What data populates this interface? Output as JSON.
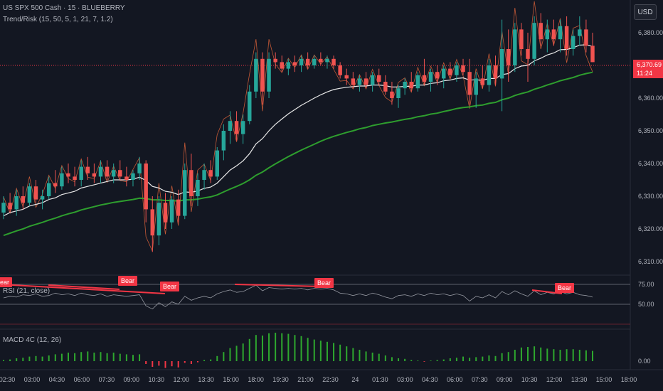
{
  "header": {
    "symbol_line": "US SPX 500 Cash · 15 · BLUEBERRY",
    "indicator_line": "Trend/Risk (15, 50, 5, 1, 21, 7, 1.2)"
  },
  "currency_button": "USD",
  "last_price": {
    "value": "6,370.69",
    "countdown": "11:24"
  },
  "rsi_panel": {
    "label": "RSI (21, close)",
    "bear_label": "Bear",
    "levels": [
      "75.00",
      "50.00"
    ]
  },
  "macd_panel": {
    "label": "MACD 4C (12, 26)",
    "level": "0.00"
  },
  "colors": {
    "up": "#26a69a",
    "down": "#f05350",
    "ema_fast": "#e8e8e8",
    "ema_slow": "#2e9e2e",
    "rsi_line": "#9598a1",
    "bear": "#f23645",
    "macd_pos": "#2ea82e",
    "macd_neg": "#f23645"
  },
  "chart_data": {
    "type": "candlestick",
    "y_ticks": [
      "6,380.00",
      "6,370.00",
      "6,360.00",
      "6,350.00",
      "6,340.00",
      "6,330.00",
      "6,320.00",
      "6,310.00"
    ],
    "ylim": [
      6306,
      6390
    ],
    "x_ticks": [
      "02:30",
      "03:00",
      "04:30",
      "06:00",
      "07:30",
      "09:00",
      "10:30",
      "12:00",
      "13:30",
      "15:00",
      "18:00",
      "19:30",
      "21:00",
      "22:30",
      "24",
      "01:30",
      "03:00",
      "04:30",
      "06:00",
      "07:30",
      "09:00",
      "10:30",
      "12:00",
      "13:30",
      "15:00",
      "18:00"
    ],
    "candles": [
      {
        "o": 6325,
        "h": 6330,
        "l": 6323,
        "c": 6328
      },
      {
        "o": 6328,
        "h": 6331,
        "l": 6325,
        "c": 6326
      },
      {
        "o": 6326,
        "h": 6332,
        "l": 6324,
        "c": 6330
      },
      {
        "o": 6330,
        "h": 6333,
        "l": 6326,
        "c": 6328
      },
      {
        "o": 6328,
        "h": 6334,
        "l": 6327,
        "c": 6333
      },
      {
        "o": 6333,
        "h": 6335,
        "l": 6328,
        "c": 6329
      },
      {
        "o": 6329,
        "h": 6332,
        "l": 6326,
        "c": 6330
      },
      {
        "o": 6330,
        "h": 6336,
        "l": 6329,
        "c": 6334
      },
      {
        "o": 6334,
        "h": 6338,
        "l": 6331,
        "c": 6333
      },
      {
        "o": 6333,
        "h": 6339,
        "l": 6332,
        "c": 6337
      },
      {
        "o": 6337,
        "h": 6340,
        "l": 6334,
        "c": 6336
      },
      {
        "o": 6336,
        "h": 6339,
        "l": 6333,
        "c": 6335
      },
      {
        "o": 6335,
        "h": 6341,
        "l": 6333,
        "c": 6339
      },
      {
        "o": 6339,
        "h": 6342,
        "l": 6335,
        "c": 6337
      },
      {
        "o": 6337,
        "h": 6340,
        "l": 6334,
        "c": 6336
      },
      {
        "o": 6336,
        "h": 6341,
        "l": 6334,
        "c": 6339
      },
      {
        "o": 6339,
        "h": 6341,
        "l": 6335,
        "c": 6336
      },
      {
        "o": 6336,
        "h": 6340,
        "l": 6334,
        "c": 6338
      },
      {
        "o": 6338,
        "h": 6341,
        "l": 6335,
        "c": 6336
      },
      {
        "o": 6336,
        "h": 6339,
        "l": 6333,
        "c": 6335
      },
      {
        "o": 6335,
        "h": 6338,
        "l": 6333,
        "c": 6337
      },
      {
        "o": 6337,
        "h": 6342,
        "l": 6335,
        "c": 6340
      },
      {
        "o": 6340,
        "h": 6341,
        "l": 6322,
        "c": 6326
      },
      {
        "o": 6326,
        "h": 6330,
        "l": 6313,
        "c": 6318
      },
      {
        "o": 6318,
        "h": 6330,
        "l": 6315,
        "c": 6328
      },
      {
        "o": 6328,
        "h": 6331,
        "l": 6320,
        "c": 6322
      },
      {
        "o": 6322,
        "h": 6330,
        "l": 6320,
        "c": 6329
      },
      {
        "o": 6329,
        "h": 6332,
        "l": 6322,
        "c": 6324
      },
      {
        "o": 6324,
        "h": 6340,
        "l": 6323,
        "c": 6338
      },
      {
        "o": 6338,
        "h": 6343,
        "l": 6327,
        "c": 6330
      },
      {
        "o": 6330,
        "h": 6337,
        "l": 6327,
        "c": 6335
      },
      {
        "o": 6335,
        "h": 6340,
        "l": 6332,
        "c": 6338
      },
      {
        "o": 6338,
        "h": 6341,
        "l": 6334,
        "c": 6336
      },
      {
        "o": 6336,
        "h": 6345,
        "l": 6335,
        "c": 6344
      },
      {
        "o": 6344,
        "h": 6352,
        "l": 6341,
        "c": 6350
      },
      {
        "o": 6350,
        "h": 6356,
        "l": 6346,
        "c": 6353
      },
      {
        "o": 6353,
        "h": 6356,
        "l": 6347,
        "c": 6349
      },
      {
        "o": 6349,
        "h": 6355,
        "l": 6346,
        "c": 6353
      },
      {
        "o": 6353,
        "h": 6364,
        "l": 6352,
        "c": 6362
      },
      {
        "o": 6362,
        "h": 6374,
        "l": 6360,
        "c": 6372
      },
      {
        "o": 6372,
        "h": 6374,
        "l": 6358,
        "c": 6362
      },
      {
        "o": 6362,
        "h": 6374,
        "l": 6360,
        "c": 6372
      },
      {
        "o": 6372,
        "h": 6374,
        "l": 6369,
        "c": 6371
      },
      {
        "o": 6371,
        "h": 6373,
        "l": 6368,
        "c": 6369
      },
      {
        "o": 6369,
        "h": 6372,
        "l": 6367,
        "c": 6371
      },
      {
        "o": 6371,
        "h": 6373,
        "l": 6368,
        "c": 6370
      },
      {
        "o": 6370,
        "h": 6373,
        "l": 6368,
        "c": 6372
      },
      {
        "o": 6372,
        "h": 6374,
        "l": 6369,
        "c": 6370
      },
      {
        "o": 6370,
        "h": 6373,
        "l": 6369,
        "c": 6372
      },
      {
        "o": 6372,
        "h": 6374,
        "l": 6370,
        "c": 6371
      },
      {
        "o": 6371,
        "h": 6373,
        "l": 6369,
        "c": 6372
      },
      {
        "o": 6372,
        "h": 6373,
        "l": 6369,
        "c": 6370
      },
      {
        "o": 6370,
        "h": 6371,
        "l": 6366,
        "c": 6367
      },
      {
        "o": 6367,
        "h": 6369,
        "l": 6364,
        "c": 6366
      },
      {
        "o": 6366,
        "h": 6368,
        "l": 6363,
        "c": 6364
      },
      {
        "o": 6364,
        "h": 6367,
        "l": 6362,
        "c": 6366
      },
      {
        "o": 6366,
        "h": 6368,
        "l": 6363,
        "c": 6364
      },
      {
        "o": 6364,
        "h": 6368,
        "l": 6362,
        "c": 6367
      },
      {
        "o": 6367,
        "h": 6369,
        "l": 6364,
        "c": 6365
      },
      {
        "o": 6365,
        "h": 6367,
        "l": 6361,
        "c": 6362
      },
      {
        "o": 6362,
        "h": 6365,
        "l": 6358,
        "c": 6360
      },
      {
        "o": 6360,
        "h": 6364,
        "l": 6357,
        "c": 6363
      },
      {
        "o": 6363,
        "h": 6366,
        "l": 6361,
        "c": 6365
      },
      {
        "o": 6365,
        "h": 6368,
        "l": 6362,
        "c": 6363
      },
      {
        "o": 6363,
        "h": 6368,
        "l": 6362,
        "c": 6367
      },
      {
        "o": 6367,
        "h": 6372,
        "l": 6364,
        "c": 6365
      },
      {
        "o": 6365,
        "h": 6369,
        "l": 6362,
        "c": 6368
      },
      {
        "o": 6368,
        "h": 6370,
        "l": 6364,
        "c": 6366
      },
      {
        "o": 6366,
        "h": 6370,
        "l": 6363,
        "c": 6369
      },
      {
        "o": 6369,
        "h": 6371,
        "l": 6366,
        "c": 6367
      },
      {
        "o": 6367,
        "h": 6371,
        "l": 6365,
        "c": 6370
      },
      {
        "o": 6370,
        "h": 6372,
        "l": 6367,
        "c": 6368
      },
      {
        "o": 6368,
        "h": 6372,
        "l": 6358,
        "c": 6361
      },
      {
        "o": 6361,
        "h": 6368,
        "l": 6357,
        "c": 6366
      },
      {
        "o": 6366,
        "h": 6370,
        "l": 6363,
        "c": 6364
      },
      {
        "o": 6364,
        "h": 6372,
        "l": 6362,
        "c": 6370
      },
      {
        "o": 6370,
        "h": 6373,
        "l": 6364,
        "c": 6366
      },
      {
        "o": 6366,
        "h": 6384,
        "l": 6356,
        "c": 6375
      },
      {
        "o": 6375,
        "h": 6381,
        "l": 6365,
        "c": 6370
      },
      {
        "o": 6370,
        "h": 6383,
        "l": 6368,
        "c": 6381
      },
      {
        "o": 6381,
        "h": 6383,
        "l": 6373,
        "c": 6375
      },
      {
        "o": 6375,
        "h": 6380,
        "l": 6365,
        "c": 6372
      },
      {
        "o": 6372,
        "h": 6385,
        "l": 6370,
        "c": 6383
      },
      {
        "o": 6383,
        "h": 6386,
        "l": 6376,
        "c": 6378
      },
      {
        "o": 6378,
        "h": 6384,
        "l": 6374,
        "c": 6381
      },
      {
        "o": 6381,
        "h": 6384,
        "l": 6376,
        "c": 6378
      },
      {
        "o": 6378,
        "h": 6384,
        "l": 6374,
        "c": 6382
      },
      {
        "o": 6382,
        "h": 6385,
        "l": 6373,
        "c": 6375
      },
      {
        "o": 6375,
        "h": 6381,
        "l": 6373,
        "c": 6379
      },
      {
        "o": 6379,
        "h": 6385,
        "l": 6376,
        "c": 6381
      },
      {
        "o": 6381,
        "h": 6384,
        "l": 6374,
        "c": 6376
      },
      {
        "o": 6376,
        "h": 6380,
        "l": 6371,
        "c": 6371
      }
    ],
    "ema_fast": [
      6324,
      6325,
      6325.5,
      6326,
      6327,
      6327.5,
      6328,
      6329,
      6329.5,
      6330.5,
      6331,
      6331.5,
      6332.5,
      6333,
      6333.5,
      6334,
      6334.5,
      6335,
      6335,
      6335,
      6335.2,
      6335.8,
      6334.8,
      6333,
      6332.5,
      6331.5,
      6331.2,
      6330.5,
      6331.3,
      6331.2,
      6331.6,
      6332.4,
      6332.8,
      6334,
      6336,
      6338,
      6339.3,
      6340.8,
      6343,
      6346,
      6347.6,
      6350,
      6352,
      6353.6,
      6355.2,
      6356.5,
      6357.8,
      6358.9,
      6360,
      6361,
      6361.9,
      6362.6,
      6363,
      6363.3,
      6363.5,
      6363.7,
      6363.7,
      6364,
      6364,
      6363.8,
      6363.4,
      6363.4,
      6363.6,
      6363.6,
      6364,
      6364,
      6364.5,
      6364.7,
      6365.3,
      6365.5,
      6366,
      6366.2,
      6365.5,
      6365.6,
      6365.4,
      6366,
      6366,
      6367.2,
      6367.5,
      6369,
      6369.8,
      6370,
      6371.4,
      6372.2,
      6373.2,
      6373.8,
      6374.8,
      6374.9,
      6375.4,
      6376.2,
      6376.3,
      6375.8
    ],
    "ema_slow": [
      6318,
      6318.7,
      6319.4,
      6320,
      6320.8,
      6321.4,
      6322,
      6322.7,
      6323.3,
      6324,
      6324.6,
      6325.1,
      6325.8,
      6326.3,
      6326.8,
      6327.3,
      6327.7,
      6328.1,
      6328.4,
      6328.7,
      6329,
      6329.4,
      6329.3,
      6328.9,
      6328.9,
      6328.7,
      6328.7,
      6328.5,
      6328.9,
      6328.9,
      6329.1,
      6329.5,
      6329.8,
      6330.4,
      6331.3,
      6332.2,
      6333,
      6333.9,
      6335,
      6336.4,
      6337.4,
      6338.7,
      6339.9,
      6341,
      6342.1,
      6343.1,
      6344.1,
      6345,
      6345.9,
      6346.8,
      6347.6,
      6348.3,
      6348.9,
      6349.5,
      6350,
      6350.6,
      6351,
      6351.6,
      6352,
      6352.4,
      6352.7,
      6353.1,
      6353.5,
      6353.8,
      6354.3,
      6354.6,
      6355.1,
      6355.4,
      6355.9,
      6356.3,
      6356.8,
      6357.1,
      6357.3,
      6357.7,
      6357.9,
      6358.4,
      6358.7,
      6359.5,
      6360,
      6360.8,
      6361.4,
      6361.9,
      6362.7,
      6363.3,
      6364,
      6364.6,
      6365.3,
      6365.8,
      6366.3,
      6367,
      6367.5,
      6367.9
    ],
    "rsi": [
      58,
      60,
      59,
      62,
      61,
      63,
      60,
      61,
      64,
      62,
      63,
      61,
      64,
      62,
      61,
      63,
      60,
      62,
      61,
      60,
      61,
      62,
      48,
      44,
      52,
      47,
      53,
      50,
      60,
      55,
      58,
      60,
      58,
      63,
      66,
      68,
      65,
      66,
      70,
      74,
      67,
      71,
      70,
      69,
      70,
      69,
      70,
      68,
      70,
      69,
      70,
      68,
      64,
      63,
      61,
      63,
      61,
      64,
      62,
      59,
      57,
      61,
      62,
      60,
      63,
      61,
      64,
      62,
      63,
      61,
      63,
      61,
      54,
      60,
      58,
      62,
      58,
      66,
      62,
      67,
      63,
      60,
      67,
      62,
      65,
      63,
      66,
      63,
      65,
      62,
      61,
      59
    ],
    "macd": [
      0.2,
      0.3,
      0.5,
      0.6,
      0.8,
      0.9,
      0.8,
      1.0,
      1.2,
      1.3,
      1.5,
      1.4,
      1.6,
      1.7,
      1.5,
      1.6,
      1.4,
      1.5,
      1.3,
      1.2,
      1.1,
      1.2,
      -0.5,
      -1.0,
      -0.8,
      -1.2,
      -0.9,
      -1.1,
      -0.3,
      -0.5,
      -0.2,
      0.2,
      0.3,
      0.9,
      1.6,
      2.3,
      2.7,
      3.1,
      3.9,
      4.6,
      4.5,
      4.9,
      5.0,
      4.9,
      4.8,
      4.6,
      4.4,
      4.1,
      3.8,
      3.6,
      3.4,
      3.2,
      2.9,
      2.6,
      2.3,
      2.0,
      1.7,
      1.5,
      1.3,
      1.0,
      0.7,
      0.5,
      0.4,
      0.2,
      0.1,
      -0.1,
      0.1,
      0.2,
      0.3,
      0.5,
      0.6,
      0.8,
      0.6,
      0.7,
      0.8,
      1.0,
      0.9,
      1.4,
      1.6,
      2.0,
      2.4,
      2.5,
      2.6,
      2.4,
      2.2,
      2.1,
      2.0,
      2.1,
      2.1,
      2.0,
      1.9,
      1.8
    ]
  }
}
